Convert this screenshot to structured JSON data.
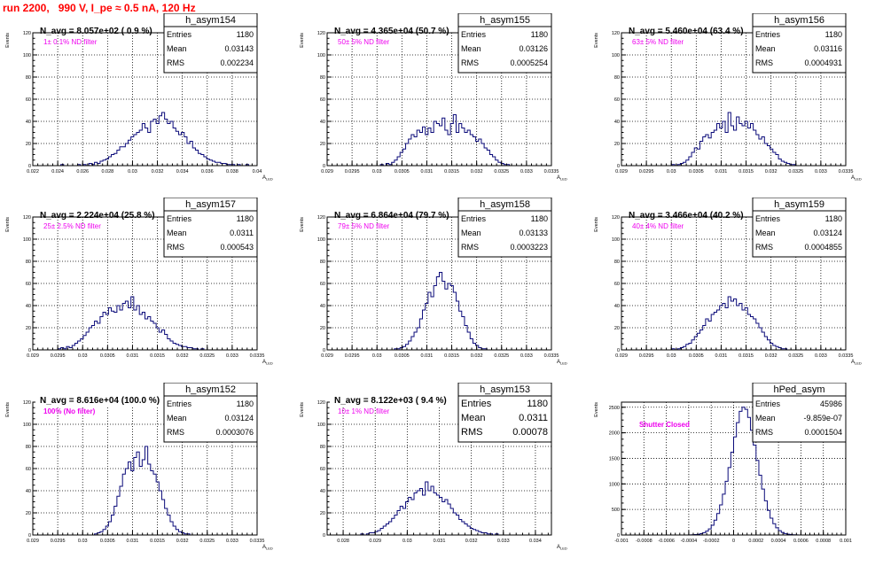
{
  "page": {
    "title": "run 2200,   990 V, I_pe ≈ 0.5 nA, 120 Hz"
  },
  "colors": {
    "histogram": "#0b0b7a",
    "title_red": "#ff0000",
    "annotation_magenta": "#ee00ee",
    "grid": "#000000",
    "frame": "#000000"
  },
  "stat_labels": {
    "entries": "Entries",
    "mean": "Mean",
    "rms": "RMS"
  },
  "chart_data": [
    {
      "type": "histogram",
      "name": "h_asym154",
      "label": "N_avg = 8.057e+02 ( 0.9 %)",
      "annotation": "1± 0.1% ND filter",
      "entries": "1180",
      "mean": "0.03143",
      "rms": "0.002234",
      "ylabel": "Events",
      "xlabel": "A_LED",
      "xlim": [
        0.022,
        0.04
      ],
      "ylim": [
        0,
        120
      ],
      "xticks": [
        "0.022",
        "0.024",
        "0.026",
        "0.028",
        "0.03",
        "0.032",
        "0.034",
        "0.036",
        "0.038",
        "0.04"
      ],
      "yticks": [
        "0",
        "20",
        "40",
        "60",
        "80",
        "100",
        "120"
      ],
      "stats_size": "small",
      "label_bg": false,
      "ann_bold": false,
      "values": [
        0,
        0,
        0,
        0,
        0,
        0,
        0,
        0,
        0,
        0,
        1,
        0,
        0,
        0,
        0,
        0,
        1,
        0,
        1,
        0,
        2,
        1,
        3,
        2,
        4,
        5,
        6,
        8,
        10,
        11,
        14,
        17,
        17,
        20,
        23,
        26,
        28,
        30,
        32,
        38,
        34,
        30,
        40,
        42,
        38,
        45,
        48,
        42,
        38,
        40,
        34,
        31,
        28,
        30,
        26,
        20,
        22,
        16,
        14,
        11,
        10,
        8,
        6,
        5,
        4,
        3,
        3,
        2,
        2,
        1,
        1,
        1,
        0,
        1,
        0,
        0,
        1,
        0,
        0,
        0
      ]
    },
    {
      "type": "histogram",
      "name": "h_asym155",
      "label": "N_avg = 4.365e+04 (50.7 %)",
      "annotation": "50± 5% ND filter",
      "entries": "1180",
      "mean": "0.03126",
      "rms": "0.0005254",
      "ylabel": "Events",
      "xlabel": "A_LED",
      "xlim": [
        0.029,
        0.0335
      ],
      "ylim": [
        0,
        120
      ],
      "xticks": [
        "0.029",
        "0.0295",
        "0.03",
        "0.0305",
        "0.031",
        "0.0315",
        "0.032",
        "0.0325",
        "0.033",
        "0.0335"
      ],
      "yticks": [
        "0",
        "20",
        "40",
        "60",
        "80",
        "100",
        "120"
      ],
      "stats_size": "small",
      "label_bg": false,
      "ann_bold": false,
      "values": [
        0,
        0,
        0,
        0,
        0,
        0,
        0,
        0,
        0,
        0,
        0,
        0,
        0,
        0,
        0,
        0,
        0,
        0,
        0,
        1,
        0,
        2,
        1,
        3,
        5,
        8,
        12,
        15,
        20,
        24,
        28,
        26,
        32,
        30,
        35,
        28,
        34,
        30,
        40,
        38,
        36,
        43,
        32,
        28,
        38,
        46,
        30,
        38,
        34,
        30,
        32,
        28,
        26,
        22,
        24,
        20,
        16,
        14,
        10,
        8,
        5,
        3,
        2,
        1,
        1,
        0,
        0,
        0,
        0,
        0,
        0,
        0,
        0,
        0,
        0,
        0,
        0,
        0,
        0,
        0
      ]
    },
    {
      "type": "histogram",
      "name": "h_asym156",
      "label": "N_avg = 5.460e+04 (63.4 %)",
      "annotation": "63± 5% ND filter",
      "entries": "1180",
      "mean": "0.03116",
      "rms": "0.0004931",
      "ylabel": "Events",
      "xlabel": "A_LED",
      "xlim": [
        0.029,
        0.0335
      ],
      "ylim": [
        0,
        120
      ],
      "xticks": [
        "0.029",
        "0.0295",
        "0.03",
        "0.0305",
        "0.031",
        "0.0315",
        "0.032",
        "0.0325",
        "0.033",
        "0.0335"
      ],
      "yticks": [
        "0",
        "20",
        "40",
        "60",
        "80",
        "100",
        "120"
      ],
      "stats_size": "small",
      "label_bg": false,
      "ann_bold": false,
      "values": [
        0,
        0,
        0,
        0,
        0,
        0,
        0,
        0,
        0,
        0,
        0,
        0,
        0,
        0,
        0,
        0,
        0,
        0,
        1,
        0,
        1,
        2,
        3,
        5,
        8,
        12,
        16,
        15,
        22,
        26,
        28,
        25,
        30,
        32,
        38,
        34,
        40,
        30,
        48,
        36,
        32,
        44,
        38,
        36,
        40,
        34,
        38,
        32,
        28,
        24,
        26,
        20,
        18,
        15,
        12,
        10,
        6,
        4,
        3,
        2,
        1,
        1,
        0,
        0,
        0,
        0,
        0,
        0,
        0,
        0,
        0,
        0,
        0,
        0,
        0,
        0,
        0,
        0,
        0,
        0
      ]
    },
    {
      "type": "histogram",
      "name": "h_asym157",
      "label": "N_avg = 2.224e+04 (25.8 %)",
      "annotation": "25± 2.5% ND filter",
      "entries": "1180",
      "mean": "0.0311",
      "rms": "0.000543",
      "ylabel": "Events",
      "xlabel": "A_LED",
      "xlim": [
        0.029,
        0.0335
      ],
      "ylim": [
        0,
        120
      ],
      "xticks": [
        "0.029",
        "0.0295",
        "0.03",
        "0.0305",
        "0.031",
        "0.0315",
        "0.032",
        "0.0325",
        "0.033",
        "0.0335"
      ],
      "yticks": [
        "0",
        "20",
        "40",
        "60",
        "80",
        "100",
        "120"
      ],
      "stats_size": "small",
      "label_bg": false,
      "ann_bold": false,
      "values": [
        0,
        0,
        0,
        0,
        0,
        0,
        0,
        0,
        0,
        1,
        2,
        1,
        3,
        2,
        4,
        6,
        8,
        10,
        13,
        16,
        20,
        22,
        26,
        24,
        30,
        34,
        32,
        38,
        35,
        34,
        40,
        36,
        42,
        44,
        38,
        48,
        36,
        40,
        32,
        34,
        28,
        30,
        26,
        24,
        20,
        16,
        18,
        14,
        10,
        8,
        6,
        5,
        4,
        3,
        3,
        2,
        2,
        1,
        1,
        0,
        1,
        0,
        0,
        0,
        0,
        0,
        0,
        0,
        0,
        0,
        0,
        0,
        0,
        0,
        0,
        0,
        0,
        0,
        0,
        0
      ]
    },
    {
      "type": "histogram",
      "name": "h_asym158",
      "label": "N_avg = 6.864e+04 (79.7 %)",
      "annotation": "79± 5% ND filter",
      "entries": "1180",
      "mean": "0.03133",
      "rms": "0.0003223",
      "ylabel": "Events",
      "xlabel": "A_LED",
      "xlim": [
        0.029,
        0.0335
      ],
      "ylim": [
        0,
        120
      ],
      "xticks": [
        "0.029",
        "0.0295",
        "0.03",
        "0.0305",
        "0.031",
        "0.0315",
        "0.032",
        "0.0325",
        "0.033",
        "0.0335"
      ],
      "yticks": [
        "0",
        "20",
        "40",
        "60",
        "80",
        "100",
        "120"
      ],
      "stats_size": "small",
      "label_bg": false,
      "ann_bold": false,
      "values": [
        0,
        0,
        0,
        0,
        0,
        0,
        0,
        0,
        0,
        0,
        0,
        0,
        0,
        0,
        0,
        0,
        0,
        0,
        0,
        0,
        0,
        0,
        0,
        0,
        1,
        1,
        2,
        3,
        5,
        8,
        12,
        16,
        20,
        28,
        36,
        42,
        52,
        48,
        58,
        66,
        70,
        62,
        55,
        60,
        58,
        52,
        44,
        35,
        30,
        22,
        16,
        10,
        6,
        4,
        2,
        1,
        1,
        0,
        0,
        0,
        0,
        0,
        0,
        0,
        0,
        0,
        0,
        0,
        0,
        0,
        0,
        0,
        0,
        0,
        0,
        0,
        0,
        0,
        0,
        0
      ]
    },
    {
      "type": "histogram",
      "name": "h_asym159",
      "label": "N_avg = 3.466e+04 (40.2 %)",
      "annotation": "40± 4% ND filter",
      "entries": "1180",
      "mean": "0.03124",
      "rms": "0.0004855",
      "ylabel": "Events",
      "xlabel": "A_LED",
      "xlim": [
        0.029,
        0.0335
      ],
      "ylim": [
        0,
        120
      ],
      "xticks": [
        "0.029",
        "0.0295",
        "0.03",
        "0.0305",
        "0.031",
        "0.0315",
        "0.032",
        "0.0325",
        "0.033",
        "0.0335"
      ],
      "yticks": [
        "0",
        "20",
        "40",
        "60",
        "80",
        "100",
        "120"
      ],
      "stats_size": "small",
      "label_bg": false,
      "ann_bold": false,
      "values": [
        0,
        0,
        0,
        0,
        0,
        0,
        0,
        0,
        0,
        0,
        0,
        0,
        0,
        0,
        0,
        0,
        0,
        0,
        1,
        0,
        1,
        2,
        3,
        5,
        6,
        9,
        12,
        15,
        18,
        22,
        28,
        26,
        32,
        34,
        36,
        40,
        42,
        38,
        48,
        44,
        46,
        40,
        42,
        36,
        38,
        32,
        30,
        28,
        24,
        20,
        16,
        12,
        9,
        6,
        4,
        3,
        2,
        1,
        1,
        0,
        0,
        0,
        0,
        0,
        0,
        0,
        0,
        0,
        0,
        0,
        0,
        0,
        0,
        0,
        0,
        0,
        0,
        0,
        0,
        0
      ]
    },
    {
      "type": "histogram",
      "name": "h_asym152",
      "label": "N_avg = 8.616e+04 (100.0 %)",
      "annotation": "100% (No filter)",
      "entries": "1180",
      "mean": "0.03124",
      "rms": "0.0003076",
      "ylabel": "Events",
      "xlabel": "A_LED",
      "xlim": [
        0.029,
        0.0335
      ],
      "ylim": [
        0,
        120
      ],
      "xticks": [
        "0.029",
        "0.0295",
        "0.03",
        "0.0305",
        "0.031",
        "0.0315",
        "0.032",
        "0.0325",
        "0.033",
        "0.0335"
      ],
      "yticks": [
        "0",
        "20",
        "40",
        "60",
        "80",
        "100",
        "120"
      ],
      "stats_size": "small",
      "label_bg": true,
      "ann_bold": true,
      "values": [
        0,
        0,
        0,
        0,
        0,
        0,
        0,
        0,
        0,
        0,
        0,
        0,
        0,
        0,
        0,
        0,
        0,
        0,
        0,
        0,
        0,
        0,
        1,
        2,
        3,
        5,
        8,
        12,
        18,
        26,
        35,
        44,
        55,
        60,
        66,
        58,
        70,
        75,
        62,
        68,
        80,
        64,
        58,
        55,
        48,
        40,
        32,
        24,
        18,
        12,
        8,
        5,
        3,
        2,
        1,
        1,
        0,
        0,
        0,
        0,
        0,
        0,
        0,
        0,
        0,
        0,
        0,
        0,
        0,
        0,
        0,
        0,
        0,
        0,
        0,
        0,
        0,
        0,
        0,
        0
      ]
    },
    {
      "type": "histogram",
      "name": "h_asym153",
      "label": "N_avg = 8.122e+03 ( 9.4 %)",
      "annotation": "10± 1% ND filter",
      "entries": "1180",
      "mean": "0.0311",
      "rms": "0.00078",
      "ylabel": "Events",
      "xlabel": "A_LED",
      "xlim": [
        0.0275,
        0.0345
      ],
      "ylim": [
        0,
        120
      ],
      "xticks": [
        "0.028",
        "0.029",
        "0.03",
        "0.031",
        "0.032",
        "0.033",
        "0.034"
      ],
      "yticks": [
        "0",
        "20",
        "40",
        "60",
        "80",
        "100",
        "120"
      ],
      "stats_size": "large",
      "label_bg": true,
      "ann_bold": false,
      "values": [
        0,
        0,
        0,
        0,
        0,
        0,
        0,
        0,
        0,
        0,
        0,
        0,
        1,
        0,
        1,
        2,
        2,
        3,
        4,
        6,
        8,
        10,
        12,
        15,
        18,
        22,
        26,
        24,
        30,
        34,
        32,
        38,
        40,
        42,
        36,
        48,
        40,
        44,
        38,
        36,
        34,
        30,
        32,
        28,
        24,
        20,
        18,
        14,
        12,
        10,
        8,
        6,
        5,
        4,
        3,
        2,
        2,
        1,
        1,
        0,
        1,
        0,
        0,
        0,
        0,
        0,
        0,
        0,
        0,
        0,
        0,
        0,
        0,
        0,
        0,
        0,
        0,
        0,
        0,
        0
      ]
    },
    {
      "type": "histogram",
      "name": "hPed_asym",
      "label": "",
      "annotation": "Shutter Closed",
      "entries": "45986",
      "mean": "-9.859e-07",
      "rms": "0.0001504",
      "ylabel": "Events",
      "xlabel": "",
      "xlim": [
        -0.001,
        0.001
      ],
      "ylim": [
        0,
        2600
      ],
      "xticks": [
        "-0.001",
        "-0.0008",
        "-0.0006",
        "-0.0004",
        "-0.0002",
        "0",
        "0.0002",
        "0.0004",
        "0.0006",
        "0.0008",
        "0.001"
      ],
      "yticks": [
        "0",
        "500",
        "1000",
        "1500",
        "2000",
        "2500"
      ],
      "stats_size": "small",
      "label_bg": false,
      "ann_bold": true,
      "values": [
        0,
        0,
        0,
        0,
        0,
        0,
        0,
        0,
        0,
        0,
        0,
        0,
        0,
        0,
        0,
        0,
        0,
        0,
        0,
        0,
        0,
        0,
        0,
        1,
        2,
        4,
        8,
        14,
        25,
        45,
        75,
        120,
        190,
        290,
        420,
        590,
        800,
        1050,
        1320,
        1620,
        1920,
        2200,
        2420,
        2500,
        2460,
        2300,
        2050,
        1760,
        1460,
        1170,
        900,
        670,
        480,
        330,
        220,
        140,
        85,
        50,
        28,
        15,
        8,
        4,
        2,
        1,
        0,
        0,
        0,
        0,
        0,
        0,
        0,
        0,
        0,
        0,
        0,
        0,
        0,
        0,
        0,
        0
      ]
    }
  ]
}
